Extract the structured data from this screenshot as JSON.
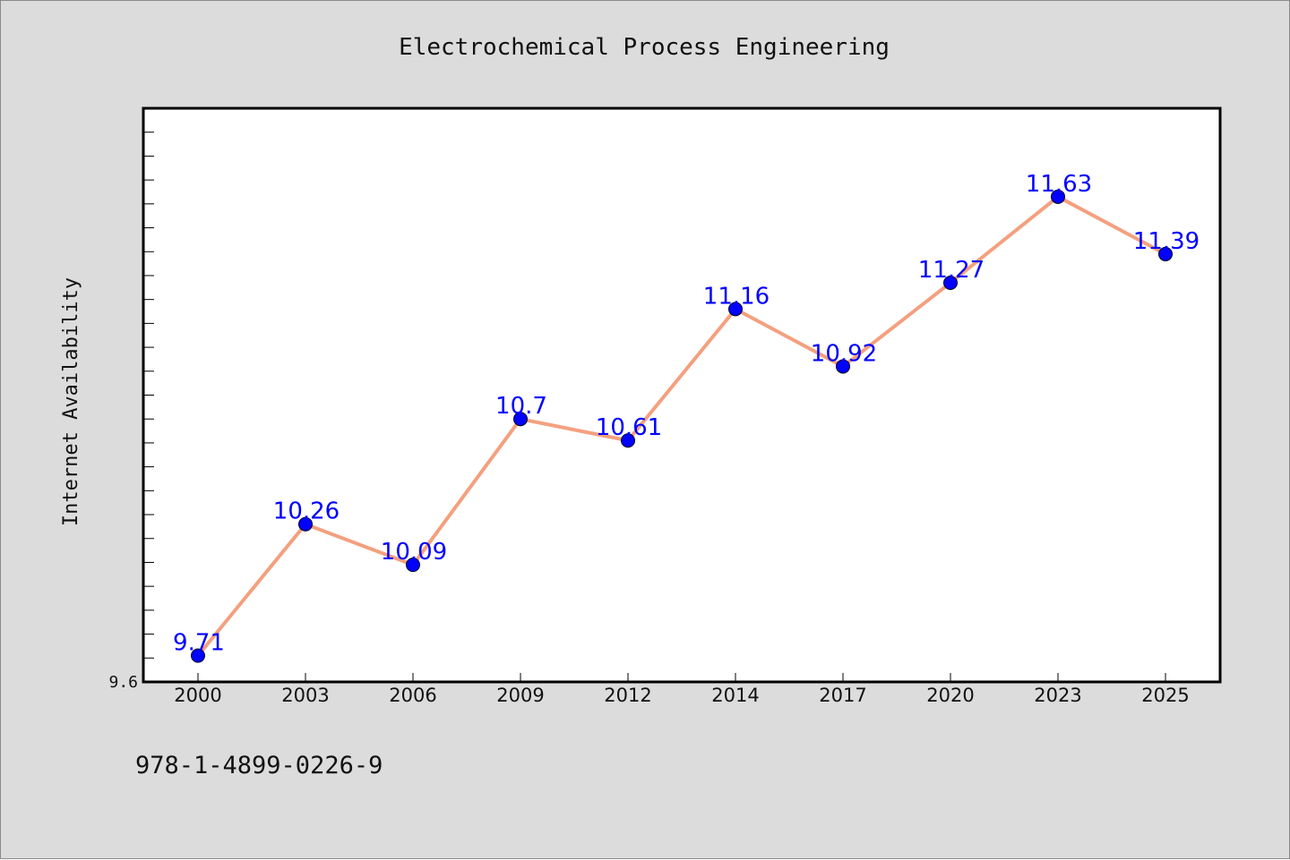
{
  "footer_text": "978-1-4899-0226-9",
  "colors": {
    "background": "#dcdcdc",
    "plot_background": "#ffffff",
    "line": "#f4a07f",
    "marker": "#0000ff",
    "data_label": "#0000ff"
  },
  "chart_data": {
    "type": "line",
    "title": "Electrochemical Process Engineering",
    "xlabel": "",
    "ylabel": "Internet Availability",
    "categories": [
      "2000",
      "2003",
      "2006",
      "2009",
      "2012",
      "2014",
      "2017",
      "2020",
      "2023",
      "2025"
    ],
    "series": [
      {
        "values": [
          9.71,
          10.26,
          10.09,
          10.7,
          10.61,
          11.16,
          10.92,
          11.27,
          11.63,
          11.39
        ]
      }
    ],
    "data_labels": [
      "9.71",
      "10.26",
      "10.09",
      "10.7",
      "10.61",
      "11.16",
      "10.92",
      "11.27",
      "11.63",
      "11.39"
    ],
    "y_tick_labels": [
      "9.6"
    ],
    "ylim": [
      9.6,
      12.0
    ],
    "y_minor_tick_step": 0.1,
    "grid": false,
    "legend": "none"
  }
}
